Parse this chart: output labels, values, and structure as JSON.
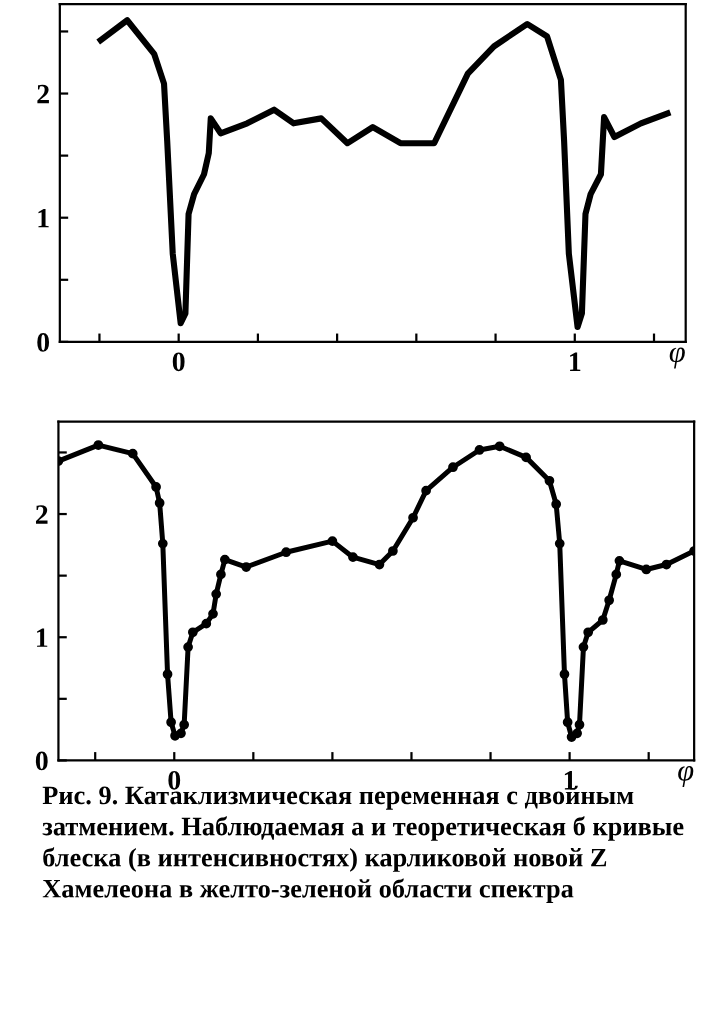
{
  "chart_data": [
    {
      "type": "line",
      "xlabel": "φ",
      "xlim": [
        -0.3,
        1.28
      ],
      "ylim": [
        0,
        2.72
      ],
      "xticks": [
        {
          "value": -0.2,
          "label": null
        },
        {
          "value": 0,
          "label": "0"
        },
        {
          "value": 0.2,
          "label": null
        },
        {
          "value": 0.4,
          "label": null
        },
        {
          "value": 0.6,
          "label": null
        },
        {
          "value": 0.8,
          "label": null
        },
        {
          "value": 1,
          "label": "1"
        },
        {
          "value": 1.2,
          "label": null
        }
      ],
      "yticks": [
        0,
        {
          "value": 0.5,
          "label": null
        },
        1,
        {
          "value": 1.5,
          "label": null
        },
        2,
        {
          "value": 2.5,
          "label": null
        }
      ],
      "grid": false,
      "marker": "none",
      "series": [
        {
          "color": "#000000",
          "x": [
            -0.197,
            -0.13,
            -0.062,
            -0.037,
            -0.029,
            -0.015,
            0.005,
            0.017,
            0.025,
            0.039,
            0.064,
            0.076,
            0.081,
            0.106,
            0.173,
            0.241,
            0.29,
            0.36,
            0.426,
            0.49,
            0.56,
            0.645,
            0.73,
            0.796,
            0.88,
            0.93,
            0.965,
            0.973,
            0.985,
            1.007,
            1.018,
            1.027,
            1.04,
            1.066,
            1.074,
            1.1,
            1.167,
            1.234
          ],
          "values": [
            2.43,
            2.59,
            2.32,
            2.08,
            1.62,
            0.71,
            0.15,
            0.23,
            1.03,
            1.19,
            1.35,
            1.52,
            1.8,
            1.68,
            1.76,
            1.87,
            1.76,
            1.8,
            1.6,
            1.73,
            1.6,
            1.6,
            2.16,
            2.38,
            2.56,
            2.46,
            2.11,
            1.62,
            0.71,
            0.12,
            0.23,
            1.03,
            1.19,
            1.35,
            1.81,
            1.65,
            1.76,
            1.84
          ]
        }
      ]
    },
    {
      "type": "line",
      "xlabel": "φ",
      "xlim": [
        -0.293,
        1.315
      ],
      "ylim": [
        0,
        2.75
      ],
      "xticks": [
        {
          "value": -0.2,
          "label": null
        },
        {
          "value": 0,
          "label": "0"
        },
        {
          "value": 0.2,
          "label": null
        },
        {
          "value": 0.4,
          "label": null
        },
        {
          "value": 0.6,
          "label": null
        },
        {
          "value": 0.8,
          "label": null
        },
        {
          "value": 1,
          "label": "1"
        },
        {
          "value": 1.2,
          "label": null
        }
      ],
      "yticks": [
        0,
        {
          "value": 0.5,
          "label": null
        },
        1,
        {
          "value": 1.5,
          "label": null
        },
        2,
        {
          "value": 2.5,
          "label": null
        }
      ],
      "grid": false,
      "marker": "circle",
      "annotations": [
        "Рис. 9. Катаклизмическая переменная с двойным затмением. Наблюдаемая а и теоретическая б кривые блеска (в интенсивностях) карликовой новой Z Хамелеона в желто-зеленой области спектра"
      ],
      "series": [
        {
          "color": "#000000",
          "x": [
            -0.293,
            -0.192,
            -0.105,
            -0.046,
            -0.037,
            -0.029,
            -0.017,
            -0.008,
            0.002,
            0.017,
            0.025,
            0.035,
            0.047,
            0.081,
            0.098,
            0.106,
            0.118,
            0.128,
            0.182,
            0.283,
            0.4,
            0.452,
            0.519,
            0.553,
            0.604,
            0.637,
            0.705,
            0.772,
            0.823,
            0.89,
            0.949,
            0.966,
            0.975,
            0.987,
            0.995,
            1.005,
            1.019,
            1.025,
            1.035,
            1.047,
            1.084,
            1.1,
            1.118,
            1.126,
            1.194,
            1.245,
            1.315
          ],
          "values": [
            2.43,
            2.56,
            2.49,
            2.22,
            2.09,
            1.76,
            0.7,
            0.31,
            0.2,
            0.22,
            0.29,
            0.92,
            1.04,
            1.11,
            1.19,
            1.35,
            1.51,
            1.63,
            1.57,
            1.69,
            1.78,
            1.65,
            1.59,
            1.7,
            1.97,
            2.19,
            2.38,
            2.52,
            2.55,
            2.46,
            2.27,
            2.08,
            1.76,
            0.7,
            0.31,
            0.19,
            0.22,
            0.29,
            0.92,
            1.04,
            1.14,
            1.3,
            1.51,
            1.62,
            1.55,
            1.59,
            1.7
          ]
        }
      ]
    }
  ]
}
